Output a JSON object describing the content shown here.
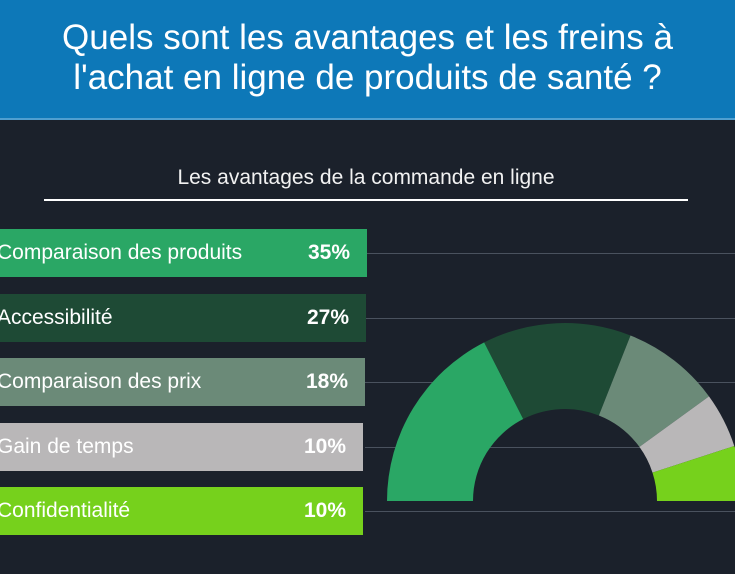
{
  "header": {
    "title": "Quels sont les avantages et les freins à\nl'achat en ligne de produits de santé ?"
  },
  "subtitle": "Les avantages de la commande en ligne",
  "chart_data": {
    "type": "donut",
    "categories": [
      "Comparaison des produits",
      "Accessibilité",
      "Comparaison des prix",
      "Gain de temps",
      "Confidentialité"
    ],
    "values": [
      35,
      27,
      18,
      10,
      10
    ],
    "value_labels": [
      "35%",
      "27%",
      "18%",
      "10%",
      "10%"
    ],
    "colors": [
      "#2aa765",
      "#1e4a35",
      "#6b8a78",
      "#b9b7b8",
      "#76d11c"
    ]
  }
}
